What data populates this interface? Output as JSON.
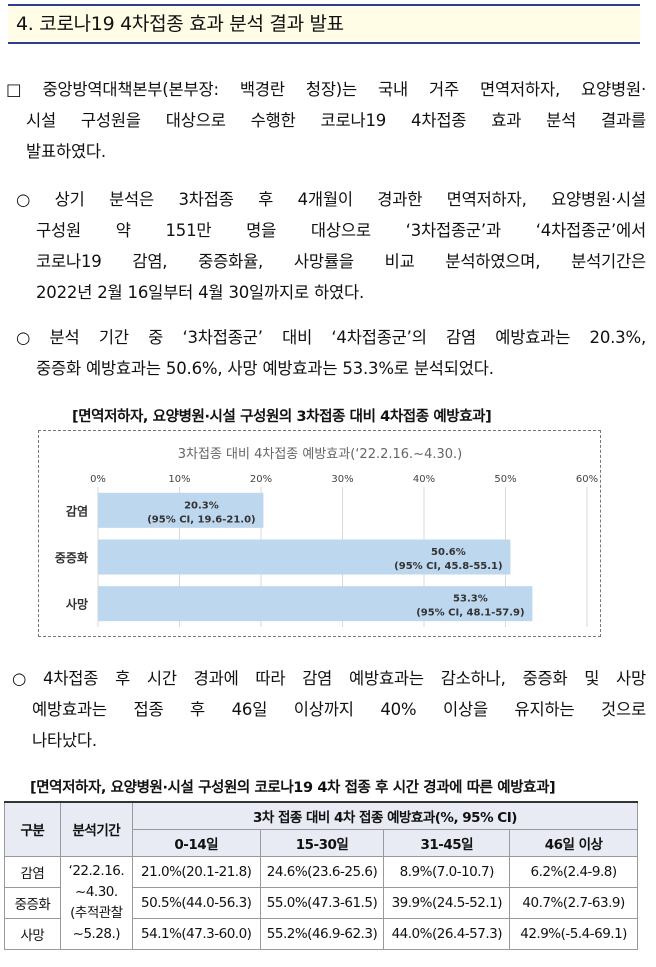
{
  "header": {
    "title": "4. 코로나19 4차접종 효과 분석 결과 발표"
  },
  "intro": {
    "marker": "□",
    "lines": [
      "중앙방역대책본부(본부장: 백경란 청장)는 국내 거주 면역저하자, 요양병원·",
      "시설 구성원을 대상으로 수행한 코로나19 4차접종 효과 분석 결과를",
      "발표하였다."
    ]
  },
  "bullet1": {
    "marker": "○",
    "lines": [
      "상기 분석은 3차접종 후 4개월이 경과한 면역저하자, 요양병원·시설",
      "구성원 약 151만 명을 대상으로 ‘3차접종군’과 ‘4차접종군’에서",
      "코로나19 감염, 중증화율, 사망률을 비교 분석하였으며, 분석기간은",
      "2022년 2월 16일부터 4월 30일까지로 하였다."
    ]
  },
  "bullet2": {
    "marker": "○",
    "lines": [
      "분석 기간 중 ‘3차접종군’ 대비 ‘4차접종군’의 감염 예방효과는 20.3%,",
      "중증화 예방효과는 50.6%, 사망 예방효과는 53.3%로 분석되었다."
    ]
  },
  "figure1": {
    "title": "[면역저하자, 요양병원·시설 구성원의 3차접종 대비 4차접종 예방효과]"
  },
  "chart_data": {
    "type": "bar",
    "orientation": "horizontal",
    "title": "3차접종 대비 4차접종 예방효과(‘22.2.16.~4.30.)",
    "categories": [
      "감염",
      "중증화",
      "사망"
    ],
    "values": [
      20.3,
      50.6,
      53.3
    ],
    "value_labels": [
      "20.3%",
      "50.6%",
      "53.3%"
    ],
    "ci_labels": [
      "(95% CI, 19.6-21.0)",
      "(95% CI, 45.8-55.1)",
      "(95% CI, 48.1-57.9)"
    ],
    "xlim": [
      0,
      60
    ],
    "xticks": [
      0,
      10,
      20,
      30,
      40,
      50,
      60
    ],
    "xtick_labels": [
      "0%",
      "10%",
      "20%",
      "30%",
      "40%",
      "50%",
      "60%"
    ],
    "xaxis_position": "top",
    "bar_color": "#bdd7ee",
    "grid": true
  },
  "bullet3": {
    "marker": "○",
    "lines": [
      "4차접종 후 시간 경과에 따라 감염 예방효과는 감소하나, 중증화 및 사망",
      "예방효과는 접종 후 46일 이상까지 40% 이상을 유지하는 것으로",
      "나타났다."
    ]
  },
  "figure2": {
    "title": "[면역저하자, 요양병원·시설 구성원의 코로나19 4차 접종 후 시간 경과에 따른 예방효과]"
  },
  "table": {
    "col_group": "구분",
    "col_period": "분석기간",
    "col_effect": "3차 접종 대비 4차 접종 예방효과(%, 95% CI)",
    "intervals": [
      "0-14일",
      "15-30일",
      "31-45일",
      "46일 이상"
    ],
    "period_lines": [
      "‘22.2.16.",
      "~4.30.",
      "(추적관찰",
      "~5.28.)"
    ],
    "rows": [
      {
        "label": "감염",
        "values": [
          "21.0%(20.1-21.8)",
          "24.6%(23.6-25.6)",
          "8.9%(7.0-10.7)",
          "6.2%(2.4-9.8)"
        ]
      },
      {
        "label": "중증화",
        "values": [
          "50.5%(44.0-56.3)",
          "55.0%(47.3-61.5)",
          "39.9%(24.5-52.1)",
          "40.7%(2.7-63.9)"
        ]
      },
      {
        "label": "사망",
        "values": [
          "54.1%(47.3-60.0)",
          "55.2%(46.9-62.3)",
          "44.0%(26.4-57.3)",
          "42.9%(-5.4-69.1)"
        ]
      }
    ]
  }
}
